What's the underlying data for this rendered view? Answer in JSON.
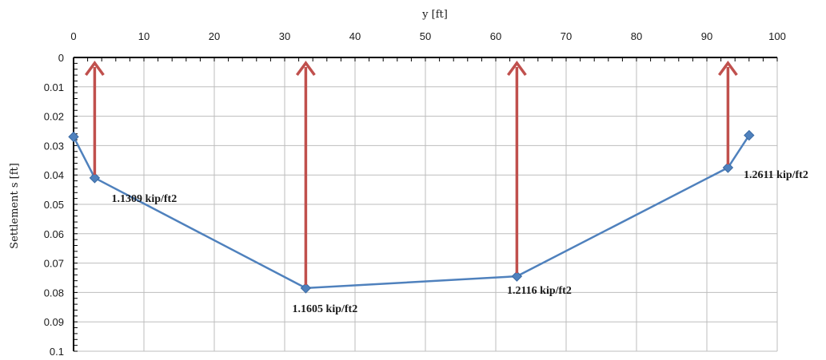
{
  "chart_data": {
    "type": "line",
    "xlabel": "y [ft]",
    "ylabel": "Settlement s [ft]",
    "xlim": [
      0,
      100
    ],
    "ylim": [
      0,
      0.1
    ],
    "y_inverted": true,
    "x_axis_position": "top",
    "grid": true,
    "x_ticks": [
      "0",
      "10",
      "20",
      "30",
      "40",
      "50",
      "60",
      "70",
      "80",
      "90",
      "100"
    ],
    "y_ticks": [
      "0",
      "0.01",
      "0.02",
      "0.03",
      "0.04",
      "0.05",
      "0.06",
      "0.07",
      "0.08",
      "0.09",
      "0.1"
    ],
    "series": [
      {
        "x": [
          0,
          3,
          33,
          63,
          93,
          96
        ],
        "y": [
          0.027,
          0.041,
          0.0785,
          0.0745,
          0.0375,
          0.0265
        ],
        "color": "#4f81bd",
        "marker": "diamond"
      }
    ],
    "annotations": [
      {
        "x": 3,
        "y": 0.041,
        "text": "1.1309 kip/ft2"
      },
      {
        "x": 33,
        "y": 0.0785,
        "text": "1.1605 kip/ft2"
      },
      {
        "x": 63,
        "y": 0.0745,
        "text": "1.2116 kip/ft2"
      },
      {
        "x": 93,
        "y": 0.0375,
        "text": "1.2611 kip/ft2"
      }
    ],
    "arrow_color": "#c0504d"
  }
}
